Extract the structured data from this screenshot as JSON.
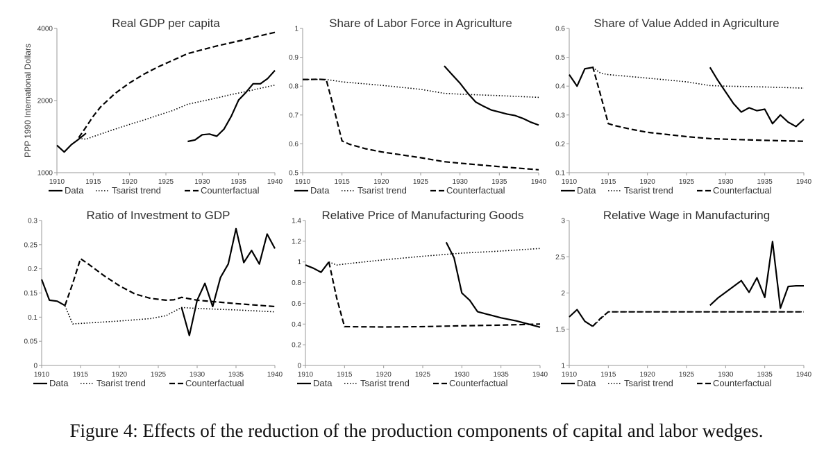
{
  "caption": "Figure 4: Effects of the reduction of the production components of capital and labor wedges.",
  "legend_labels": [
    "Data",
    "Tsarist trend",
    "Counterfactual"
  ],
  "chart_data": [
    {
      "type": "line",
      "title": "Real GDP per capita",
      "ylabel": "PPP 1990 International Dollars",
      "xlim": [
        1910,
        1940
      ],
      "ylim": [
        1000,
        4000
      ],
      "yscale": "log",
      "xticks": [
        1910,
        1915,
        1920,
        1925,
        1930,
        1935,
        1940
      ],
      "yticks": [
        1000,
        2000,
        4000
      ],
      "ytick_labels": [
        "1000",
        "2000",
        "4000"
      ],
      "series": [
        {
          "name": "Data",
          "style": "solid",
          "x": [
            1910,
            1911,
            1912,
            1913,
            1914
          ],
          "y": [
            1300,
            1220,
            1310,
            1380,
            1460
          ]
        },
        {
          "name": "Data",
          "style": "solid",
          "x": [
            1928,
            1929,
            1930,
            1931,
            1932,
            1933,
            1934,
            1935,
            1936,
            1937,
            1938,
            1939,
            1940
          ],
          "y": [
            1350,
            1370,
            1440,
            1450,
            1420,
            1520,
            1720,
            2010,
            2160,
            2350,
            2350,
            2470,
            2670
          ]
        },
        {
          "name": "Tsarist trend",
          "style": "dotted",
          "x": [
            1913,
            1914,
            1916,
            1918,
            1920,
            1922,
            1924,
            1926,
            1928,
            1930,
            1932,
            1934,
            1936,
            1938,
            1940
          ],
          "y": [
            1390,
            1380,
            1450,
            1520,
            1590,
            1660,
            1740,
            1820,
            1930,
            1990,
            2050,
            2120,
            2180,
            2250,
            2320
          ]
        },
        {
          "name": "Counterfactual",
          "style": "dashed",
          "x": [
            1913,
            1914,
            1915,
            1916,
            1918,
            1920,
            1922,
            1924,
            1926,
            1928,
            1930,
            1932,
            1934,
            1936,
            1938,
            1940
          ],
          "y": [
            1400,
            1550,
            1720,
            1880,
            2140,
            2370,
            2580,
            2770,
            2950,
            3140,
            3260,
            3380,
            3490,
            3600,
            3730,
            3850
          ]
        }
      ]
    },
    {
      "type": "line",
      "title": "Share of Labor Force in Agriculture",
      "xlim": [
        1910,
        1940
      ],
      "ylim": [
        0.5,
        1
      ],
      "xticks": [
        1910,
        1915,
        1920,
        1925,
        1930,
        1935,
        1940
      ],
      "yticks": [
        0.5,
        0.6,
        0.7,
        0.8,
        0.9,
        1
      ],
      "ytick_labels": [
        "0.5",
        "0.6",
        "0.7",
        "0.8",
        "0.9",
        "1"
      ],
      "series": [
        {
          "name": "Data",
          "style": "solid",
          "x": [
            1928,
            1929,
            1930,
            1931,
            1932,
            1933,
            1934,
            1935,
            1936,
            1937,
            1938,
            1939,
            1940
          ],
          "y": [
            0.87,
            0.84,
            0.81,
            0.775,
            0.745,
            0.73,
            0.717,
            0.71,
            0.703,
            0.698,
            0.688,
            0.675,
            0.665
          ]
        },
        {
          "name": "Tsarist trend",
          "style": "dotted",
          "x": [
            1910,
            1913,
            1915,
            1920,
            1925,
            1928,
            1930,
            1935,
            1940
          ],
          "y": [
            0.823,
            0.823,
            0.815,
            0.803,
            0.789,
            0.775,
            0.772,
            0.767,
            0.761
          ]
        },
        {
          "name": "Counterfactual",
          "style": "dashed",
          "x": [
            1910,
            1911,
            1912,
            1913,
            1914,
            1915,
            1916,
            1918,
            1920,
            1925,
            1928,
            1930,
            1935,
            1940
          ],
          "y": [
            0.823,
            0.823,
            0.824,
            0.822,
            0.72,
            0.61,
            0.598,
            0.583,
            0.572,
            0.552,
            0.538,
            0.533,
            0.521,
            0.51
          ]
        }
      ]
    },
    {
      "type": "line",
      "title": "Share of Value Added in Agriculture",
      "xlim": [
        1910,
        1940
      ],
      "ylim": [
        0.1,
        0.6
      ],
      "xticks": [
        1910,
        1915,
        1920,
        1925,
        1930,
        1935,
        1940
      ],
      "yticks": [
        0.1,
        0.2,
        0.3,
        0.4,
        0.5,
        0.6
      ],
      "ytick_labels": [
        "0.1",
        "0.2",
        "0.3",
        "0.4",
        "0.5",
        "0.6"
      ],
      "series": [
        {
          "name": "Data",
          "style": "solid",
          "x": [
            1910,
            1911,
            1912,
            1913
          ],
          "y": [
            0.44,
            0.4,
            0.46,
            0.465
          ]
        },
        {
          "name": "Data",
          "style": "solid",
          "x": [
            1928,
            1929,
            1930,
            1931,
            1932,
            1933,
            1934,
            1935,
            1936,
            1937,
            1938,
            1939,
            1940
          ],
          "y": [
            0.465,
            0.42,
            0.38,
            0.34,
            0.31,
            0.325,
            0.315,
            0.32,
            0.27,
            0.3,
            0.275,
            0.26,
            0.285
          ]
        },
        {
          "name": "Tsarist trend",
          "style": "dotted",
          "x": [
            1913,
            1914,
            1915,
            1920,
            1925,
            1928,
            1930,
            1935,
            1940
          ],
          "y": [
            0.465,
            0.445,
            0.44,
            0.428,
            0.415,
            0.402,
            0.4,
            0.397,
            0.393
          ]
        },
        {
          "name": "Counterfactual",
          "style": "dashed",
          "x": [
            1913,
            1914,
            1915,
            1916,
            1918,
            1920,
            1925,
            1928,
            1930,
            1935,
            1940
          ],
          "y": [
            0.468,
            0.37,
            0.27,
            0.262,
            0.25,
            0.24,
            0.225,
            0.218,
            0.216,
            0.212,
            0.209
          ]
        }
      ]
    },
    {
      "type": "line",
      "title": "Ratio of Investment to GDP",
      "xlim": [
        1910,
        1940
      ],
      "ylim": [
        0,
        0.3
      ],
      "xticks": [
        1910,
        1915,
        1920,
        1925,
        1930,
        1935,
        1940
      ],
      "yticks": [
        0,
        0.05,
        0.1,
        0.15,
        0.2,
        0.25,
        0.3
      ],
      "ytick_labels": [
        "0",
        "0.05",
        "0.1",
        "0.15",
        "0.2",
        "0.25",
        "0.3"
      ],
      "series": [
        {
          "name": "Data",
          "style": "solid",
          "x": [
            1910,
            1911,
            1912,
            1913
          ],
          "y": [
            0.178,
            0.135,
            0.133,
            0.124
          ]
        },
        {
          "name": "Data",
          "style": "solid",
          "x": [
            1928,
            1929,
            1930,
            1931,
            1932,
            1933,
            1934,
            1935,
            1936,
            1937,
            1938,
            1939,
            1940
          ],
          "y": [
            0.12,
            0.062,
            0.135,
            0.17,
            0.122,
            0.182,
            0.21,
            0.283,
            0.213,
            0.238,
            0.21,
            0.272,
            0.242
          ]
        },
        {
          "name": "Tsarist trend",
          "style": "dotted",
          "x": [
            1913,
            1914,
            1915,
            1920,
            1924,
            1926,
            1928,
            1930,
            1935,
            1940
          ],
          "y": [
            0.123,
            0.086,
            0.087,
            0.092,
            0.097,
            0.103,
            0.12,
            0.118,
            0.115,
            0.111
          ]
        },
        {
          "name": "Counterfactual",
          "style": "dashed",
          "x": [
            1913,
            1914,
            1915,
            1916,
            1918,
            1920,
            1922,
            1924,
            1926,
            1927,
            1928,
            1930,
            1935,
            1940
          ],
          "y": [
            0.124,
            0.17,
            0.221,
            0.21,
            0.186,
            0.165,
            0.148,
            0.139,
            0.135,
            0.136,
            0.141,
            0.135,
            0.128,
            0.122
          ]
        }
      ]
    },
    {
      "type": "line",
      "title": "Relative Price of Manufacturing Goods",
      "xlim": [
        1910,
        1940
      ],
      "ylim": [
        0,
        1.4
      ],
      "xticks": [
        1910,
        1915,
        1920,
        1925,
        1930,
        1935,
        1940
      ],
      "yticks": [
        0,
        0.2,
        0.4,
        0.6,
        0.8,
        1,
        1.2,
        1.4
      ],
      "ytick_labels": [
        "0",
        "0.2",
        "0.4",
        "0.6",
        "0.8",
        "1",
        "1.2",
        "1.4"
      ],
      "series": [
        {
          "name": "Data",
          "style": "solid",
          "x": [
            1910,
            1911,
            1912,
            1913
          ],
          "y": [
            0.97,
            0.94,
            0.9,
            1.0
          ]
        },
        {
          "name": "Data",
          "style": "solid",
          "x": [
            1928,
            1929,
            1930,
            1931,
            1932,
            1933,
            1934,
            1935,
            1936,
            1937,
            1938,
            1939,
            1940
          ],
          "y": [
            1.19,
            1.04,
            0.7,
            0.63,
            0.52,
            0.5,
            0.48,
            0.46,
            0.445,
            0.43,
            0.41,
            0.39,
            0.37
          ]
        },
        {
          "name": "Tsarist trend",
          "style": "dotted",
          "x": [
            1913,
            1914,
            1915,
            1920,
            1925,
            1930,
            1935,
            1940
          ],
          "y": [
            1.0,
            0.97,
            0.98,
            1.02,
            1.055,
            1.085,
            1.105,
            1.13
          ]
        },
        {
          "name": "Counterfactual",
          "style": "dashed",
          "x": [
            1913,
            1914,
            1915,
            1920,
            1925,
            1930,
            1935,
            1940
          ],
          "y": [
            1.0,
            0.65,
            0.375,
            0.372,
            0.375,
            0.383,
            0.39,
            0.4
          ]
        }
      ]
    },
    {
      "type": "line",
      "title": "Relative Wage in Manufacturing",
      "xlim": [
        1910,
        1940
      ],
      "ylim": [
        1,
        3
      ],
      "xticks": [
        1910,
        1915,
        1920,
        1925,
        1930,
        1935,
        1940
      ],
      "yticks": [
        1,
        1.5,
        2,
        2.5,
        3
      ],
      "ytick_labels": [
        "1",
        "1.5",
        "2",
        "2.5",
        "3"
      ],
      "series": [
        {
          "name": "Data",
          "style": "solid",
          "x": [
            1910,
            1911,
            1912,
            1913
          ],
          "y": [
            1.67,
            1.77,
            1.61,
            1.54
          ]
        },
        {
          "name": "Data",
          "style": "solid",
          "x": [
            1928,
            1929,
            1930,
            1931,
            1932,
            1933,
            1934,
            1935,
            1936,
            1937,
            1938,
            1939,
            1940
          ],
          "y": [
            1.83,
            1.93,
            2.01,
            2.09,
            2.17,
            2.01,
            2.21,
            1.94,
            2.71,
            1.79,
            2.09,
            2.1,
            2.1
          ]
        },
        {
          "name": "Tsarist trend",
          "style": "dotted",
          "x": [
            1913,
            1915,
            1920,
            1925,
            1930,
            1935,
            1940
          ],
          "y": [
            1.54,
            1.74,
            1.74,
            1.74,
            1.74,
            1.74,
            1.74
          ]
        },
        {
          "name": "Counterfactual",
          "style": "dashed",
          "x": [
            1913,
            1914,
            1915,
            1920,
            1925,
            1930,
            1935,
            1940
          ],
          "y": [
            1.54,
            1.65,
            1.74,
            1.74,
            1.74,
            1.74,
            1.74,
            1.74
          ]
        }
      ]
    }
  ]
}
